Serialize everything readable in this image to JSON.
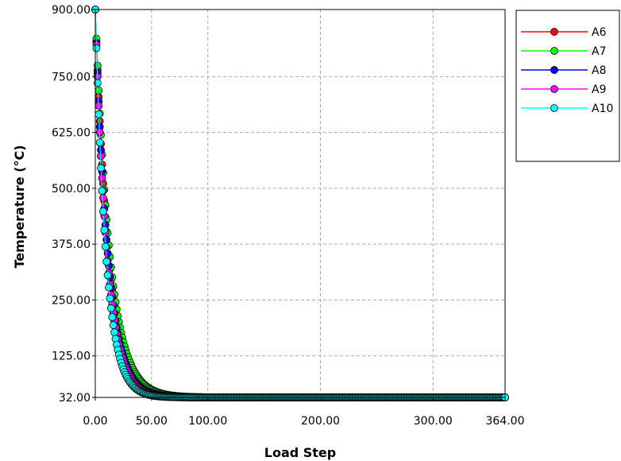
{
  "chart_data": {
    "type": "line",
    "xlabel": "Load Step",
    "ylabel": "Temperature (°C)",
    "xlim": [
      0,
      364
    ],
    "ylim": [
      32,
      900
    ],
    "x_ticks": [
      0,
      50,
      100,
      200,
      300,
      364
    ],
    "x_tick_labels": [
      "0.00",
      "50.00",
      "100.00",
      "200.00",
      "300.00",
      "364.00"
    ],
    "y_ticks": [
      32,
      125,
      250,
      375,
      500,
      625,
      750,
      900
    ],
    "y_tick_labels": [
      "32.00",
      "125.00",
      "250.00",
      "375.00",
      "500.00",
      "625.00",
      "750.00",
      "900.00"
    ],
    "grid": true,
    "legend_position": "right",
    "series": [
      {
        "name": "A6",
        "color": "#ff0000",
        "start": 900,
        "end": 32,
        "decay": 0.085
      },
      {
        "name": "A7",
        "color": "#00ff00",
        "start": 900,
        "end": 32,
        "decay": 0.078
      },
      {
        "name": "A8",
        "color": "#0000ff",
        "start": 900,
        "end": 32,
        "decay": 0.09
      },
      {
        "name": "A9",
        "color": "#ff00ff",
        "start": 900,
        "end": 32,
        "decay": 0.095
      },
      {
        "name": "A10",
        "color": "#00ffff",
        "start": 900,
        "end": 32,
        "decay": 0.105
      }
    ],
    "x_range_steps": 364
  }
}
